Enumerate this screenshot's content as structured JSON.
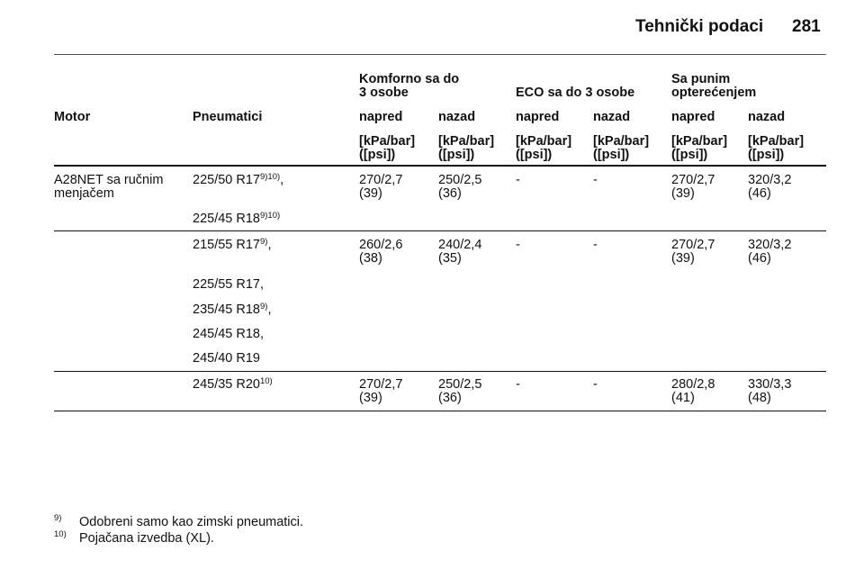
{
  "header": {
    "title": "Tehnički podaci",
    "page": "281"
  },
  "table": {
    "group_headers": [
      [
        "Komforno sa do",
        "3 osobe"
      ],
      [
        "ECO sa do 3 osobe"
      ],
      [
        "Sa punim",
        "opterećenjem"
      ]
    ],
    "columns": [
      "Motor",
      "Pneumatici",
      "napred",
      "nazad",
      "napred",
      "nazad",
      "napred",
      "nazad"
    ],
    "units": [
      [
        "[kPa/bar]",
        "([psi])"
      ],
      [
        "[kPa/bar]",
        "([psi])"
      ],
      [
        "[kPa/bar]",
        "([psi])"
      ],
      [
        "[kPa/bar]",
        "([psi])"
      ],
      [
        "[kPa/bar]",
        "([psi])"
      ],
      [
        "[kPa/bar]",
        "([psi])"
      ]
    ],
    "rows": [
      {
        "motor": [
          "A28NET sa ručnim",
          "menjačem"
        ],
        "groups": [
          {
            "tyres": [
              {
                "text": "225/50 R17",
                "sup": "9)10)",
                "suffix": ","
              },
              {
                "text": "225/45 R18",
                "sup": "9)10)"
              }
            ],
            "values": [
              {
                "main": "270/2,7",
                "psi": "(39)"
              },
              {
                "main": "250/2,5",
                "psi": "(36)"
              },
              {
                "main": "-"
              },
              {
                "main": "-"
              },
              {
                "main": "270/2,7",
                "psi": "(39)"
              },
              {
                "main": "320/3,2",
                "psi": "(46)"
              }
            ]
          },
          {
            "tyres": [
              {
                "text": "215/55 R17",
                "sup": "9)",
                "suffix": ","
              },
              {
                "text": "225/55 R17,"
              },
              {
                "text": "235/45 R18",
                "sup": "9)",
                "suffix": ","
              },
              {
                "text": "245/45 R18,"
              },
              {
                "text": "245/40 R19"
              }
            ],
            "values": [
              {
                "main": "260/2,6",
                "psi": "(38)"
              },
              {
                "main": "240/2,4",
                "psi": "(35)"
              },
              {
                "main": "-"
              },
              {
                "main": "-"
              },
              {
                "main": "270/2,7",
                "psi": "(39)"
              },
              {
                "main": "320/3,2",
                "psi": "(46)"
              }
            ]
          },
          {
            "tyres": [
              {
                "text": "245/35 R20",
                "sup": "10)"
              }
            ],
            "values": [
              {
                "main": "270/2,7",
                "psi": "(39)"
              },
              {
                "main": "250/2,5",
                "psi": "(36)"
              },
              {
                "main": "-"
              },
              {
                "main": "-"
              },
              {
                "main": "280/2,8",
                "psi": "(41)"
              },
              {
                "main": "330/3,3",
                "psi": "(48)"
              }
            ]
          }
        ]
      }
    ]
  },
  "footnotes": [
    {
      "mark": "9)",
      "text": "Odobreni samo kao zimski pneumatici."
    },
    {
      "mark": "10)",
      "text": "Pojačana izvedba (XL)."
    }
  ]
}
